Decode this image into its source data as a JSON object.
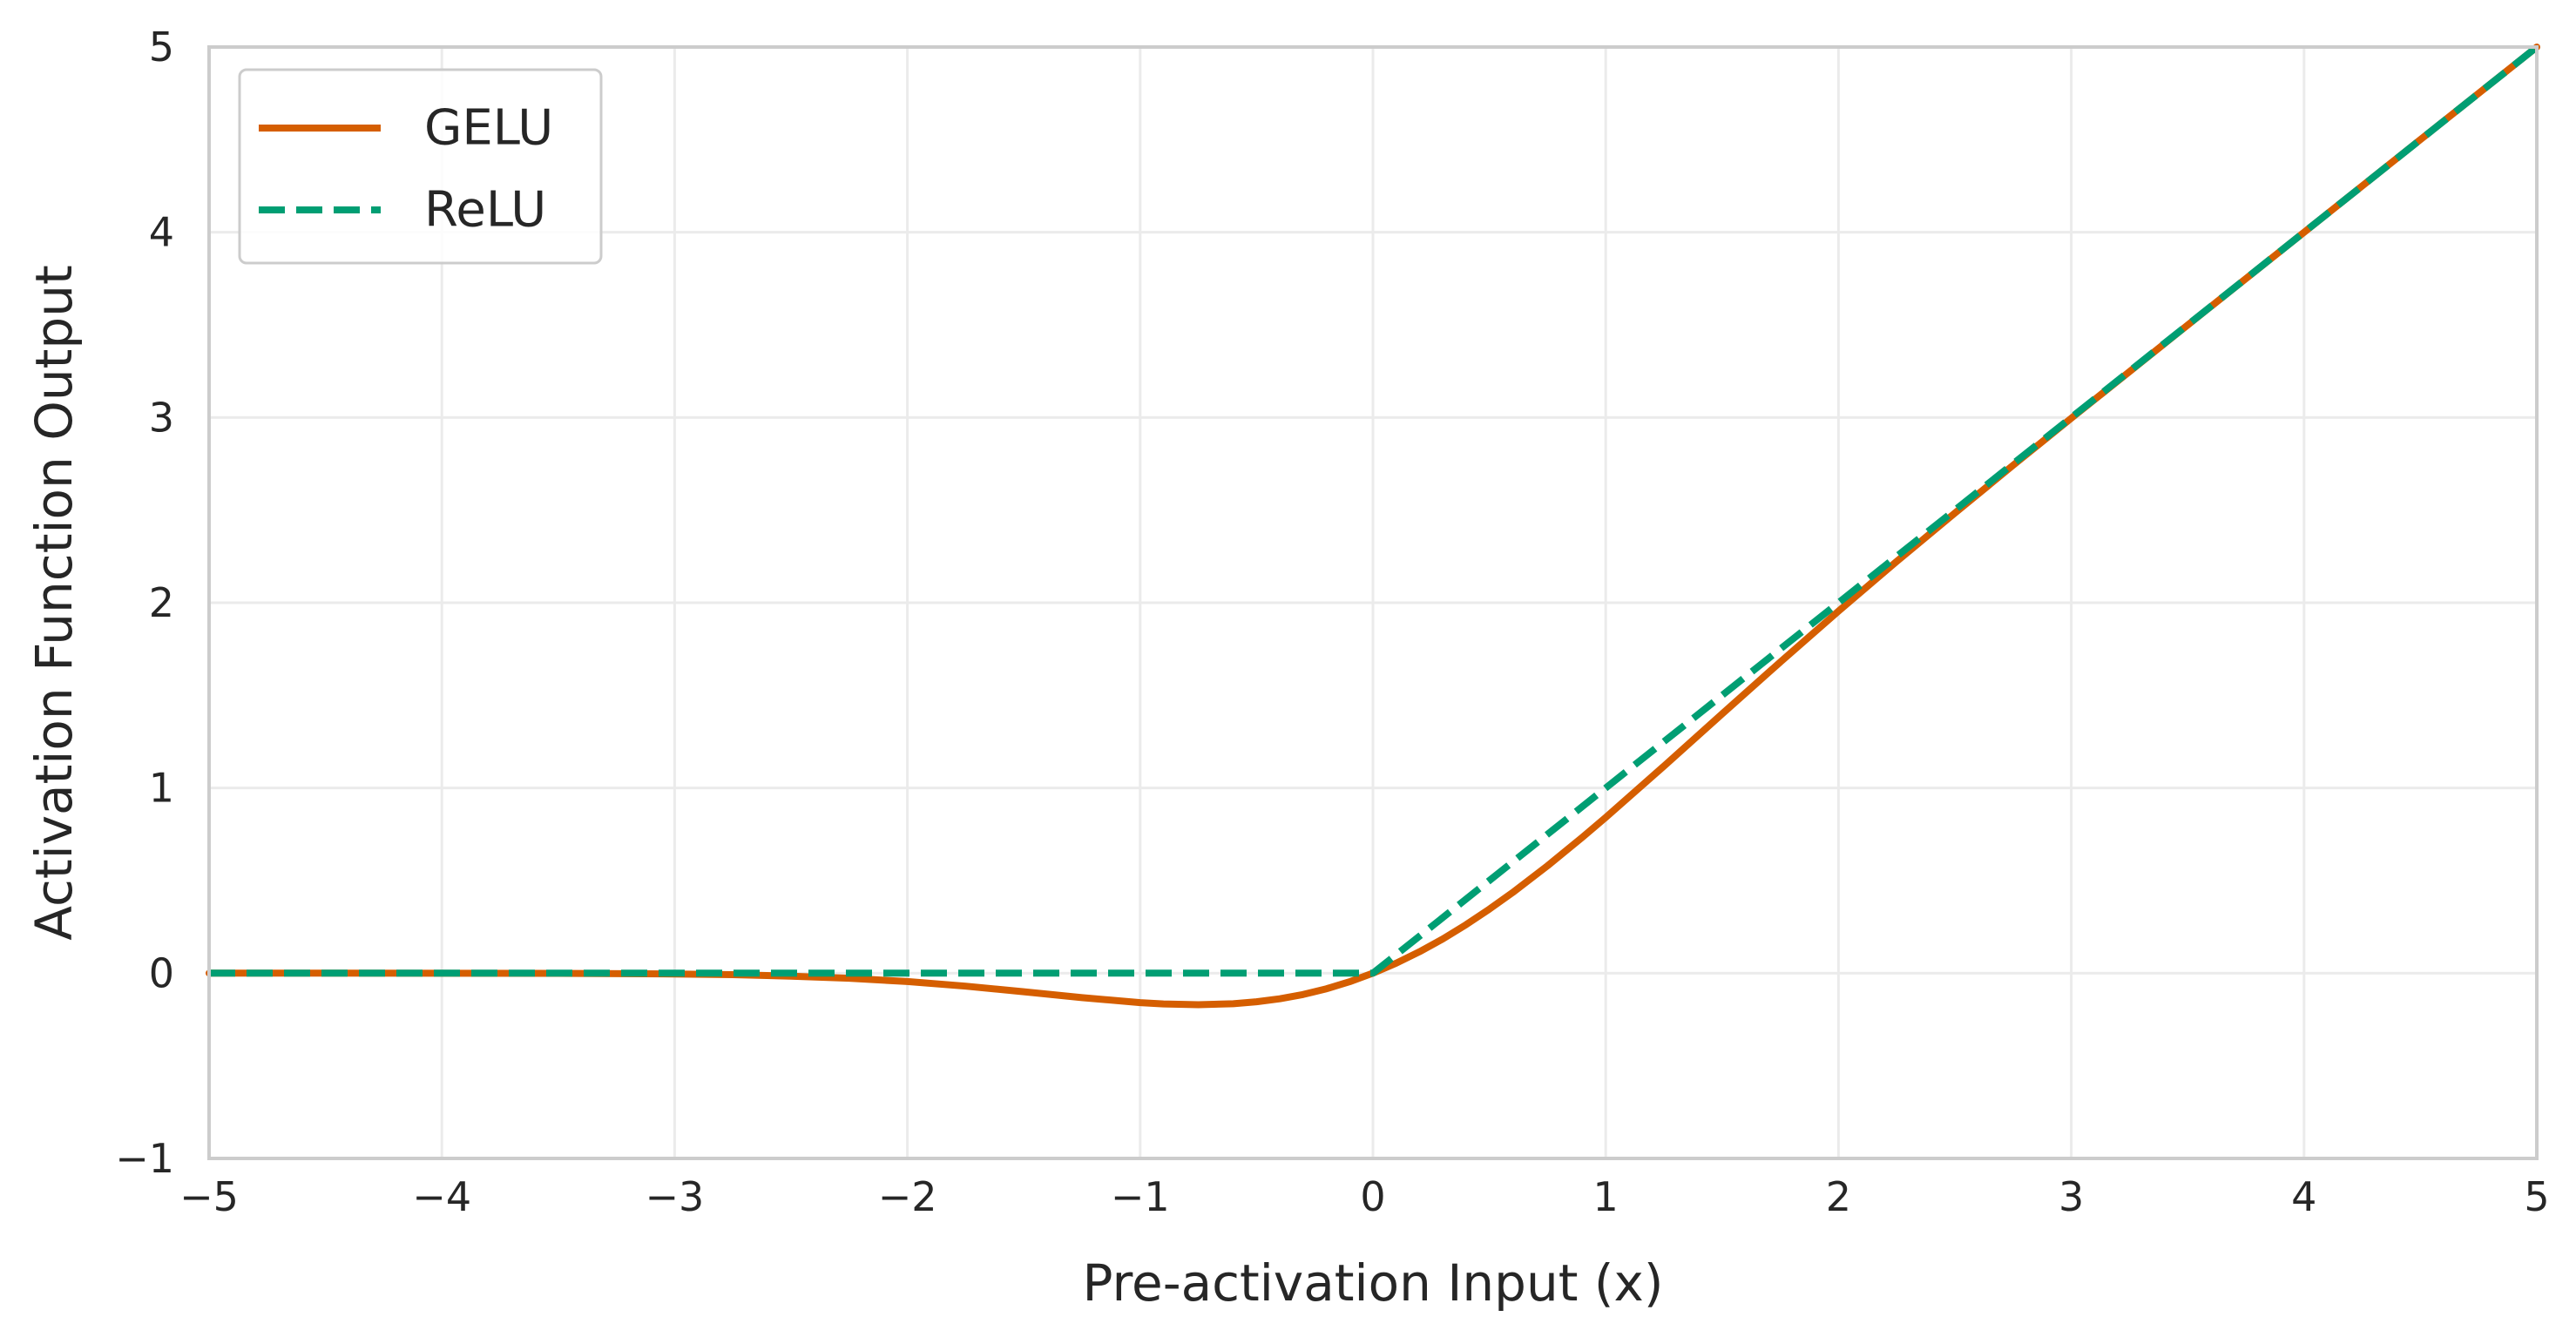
{
  "chart_data": {
    "type": "line",
    "title": "",
    "xlabel": "Pre-activation Input (x)",
    "ylabel": "Activation Function Output",
    "xlim": [
      -5,
      5
    ],
    "ylim": [
      -1,
      5
    ],
    "xticks": [
      -5,
      -4,
      -3,
      -2,
      -1,
      0,
      1,
      2,
      3,
      4,
      5
    ],
    "yticks": [
      -1,
      0,
      1,
      2,
      3,
      4,
      5
    ],
    "xtick_labels": [
      "−5",
      "−4",
      "−3",
      "−2",
      "−1",
      "0",
      "1",
      "2",
      "3",
      "4",
      "5"
    ],
    "ytick_labels": [
      "−1",
      "0",
      "1",
      "2",
      "3",
      "4",
      "5"
    ],
    "grid": true,
    "legend_position": "top-left",
    "series": [
      {
        "name": "GELU",
        "color": "#d55e00",
        "style": "solid",
        "x": [
          -5,
          -4.5,
          -4,
          -3.5,
          -3,
          -2.75,
          -2.5,
          -2.25,
          -2,
          -1.75,
          -1.5,
          -1.25,
          -1,
          -0.9,
          -0.75,
          -0.6,
          -0.5,
          -0.4,
          -0.3,
          -0.2,
          -0.1,
          0,
          0.1,
          0.2,
          0.3,
          0.4,
          0.5,
          0.6,
          0.75,
          0.9,
          1,
          1.25,
          1.5,
          1.75,
          2,
          2.25,
          2.5,
          2.75,
          3,
          3.5,
          4,
          4.5,
          5
        ],
        "y": [
          0,
          0,
          -0.0001,
          -0.0008,
          -0.004,
          -0.008,
          -0.016,
          -0.027,
          -0.045,
          -0.07,
          -0.1,
          -0.132,
          -0.159,
          -0.166,
          -0.17,
          -0.165,
          -0.154,
          -0.138,
          -0.115,
          -0.084,
          -0.046,
          0,
          0.054,
          0.116,
          0.185,
          0.262,
          0.346,
          0.435,
          0.58,
          0.734,
          0.841,
          1.118,
          1.4,
          1.68,
          1.955,
          2.223,
          2.484,
          2.742,
          2.996,
          3.499,
          4,
          4.5,
          5
        ]
      },
      {
        "name": "ReLU",
        "color": "#009e73",
        "style": "dashed",
        "x": [
          -5,
          0,
          5
        ],
        "y": [
          0,
          0,
          5
        ]
      }
    ]
  }
}
